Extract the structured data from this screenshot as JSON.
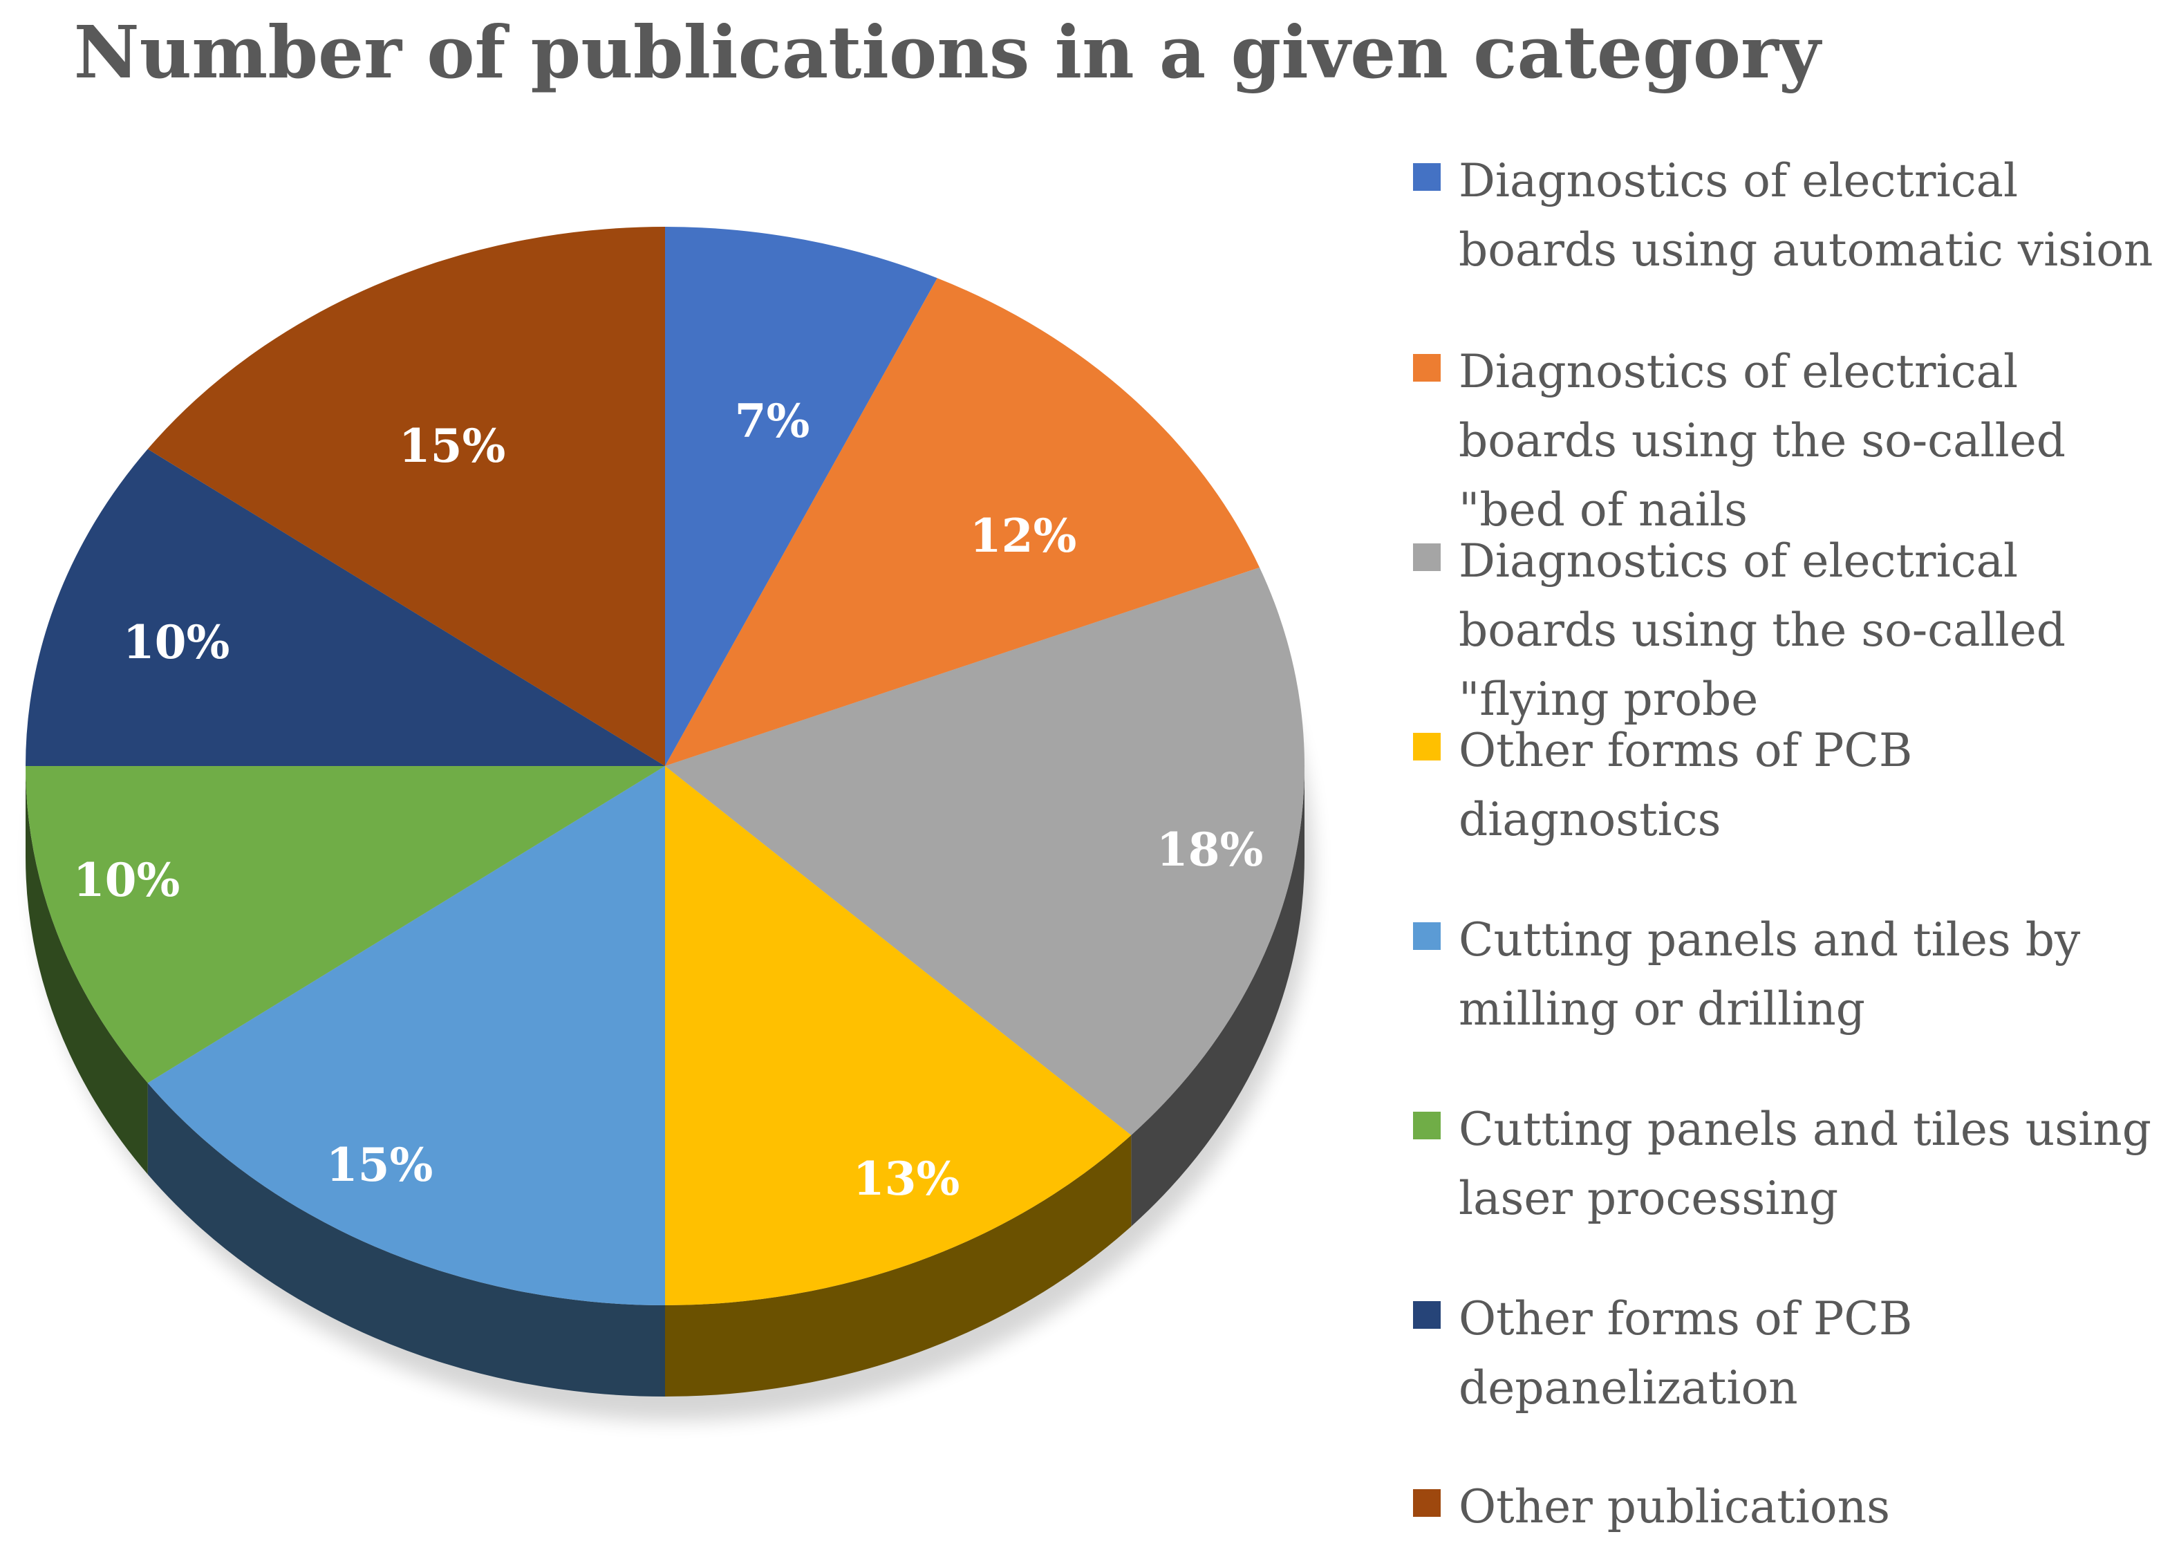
{
  "chart_data": {
    "type": "pie",
    "title": "Number of publications in a given category",
    "legend_position": "right",
    "start_angle_deg": 0,
    "direction": "clockwise",
    "slices": [
      {
        "label": "Diagnostics of electrical boards using automatic vision",
        "value": 7,
        "display": "7%",
        "color": "#4472C4"
      },
      {
        "label": "Diagnostics of electrical boards using the so-called \"bed of nails",
        "value": 12,
        "display": "12%",
        "color": "#ED7D31"
      },
      {
        "label": "Diagnostics of electrical boards using the so-called \"flying probe",
        "value": 18,
        "display": "18%",
        "color": "#A5A5A5"
      },
      {
        "label": "Other forms of PCB diagnostics",
        "value": 13,
        "display": "13%",
        "color": "#FFC000"
      },
      {
        "label": "Cutting panels and tiles by milling or drilling",
        "value": 15,
        "display": "15%",
        "color": "#5B9BD5"
      },
      {
        "label": "Cutting panels and tiles using laser processing",
        "value": 10,
        "display": "10%",
        "color": "#70AD47"
      },
      {
        "label": "Other forms of PCB depanelization",
        "value": 10,
        "display": "10%",
        "color": "#264478"
      },
      {
        "label": "Other publications",
        "value": 15,
        "display": "15%",
        "color": "#9E480E"
      }
    ]
  }
}
